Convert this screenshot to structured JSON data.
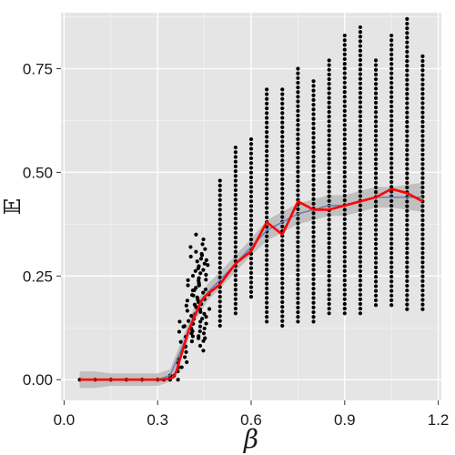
{
  "chart_data": {
    "type": "scatter",
    "xlabel": "β",
    "ylabel": "𝔼",
    "xlim": [
      -0.01,
      1.21
    ],
    "ylim": [
      -0.05,
      0.885
    ],
    "x_ticks": [
      0.0,
      0.3,
      0.6,
      0.9,
      1.2
    ],
    "x_tick_labels": [
      "0.0",
      "0.3",
      "0.6",
      "0.9",
      "1.2"
    ],
    "y_ticks": [
      0.0,
      0.25,
      0.5,
      0.75
    ],
    "y_tick_labels": [
      "0.00",
      "0.25",
      "0.50",
      "0.75"
    ],
    "grid": true,
    "colors": {
      "panel": "#e5e5e5",
      "grid_major": "#ffffff",
      "grid_minor": "#f2f2f2",
      "points": "#000000",
      "mean_line": "#ff0000",
      "smooth_line": "#6a7fb5",
      "smooth_band": "#b3b3b3"
    },
    "scatter_columns": [
      {
        "x": 0.05,
        "ymin": 0.0,
        "ymax": 0.0
      },
      {
        "x": 0.1,
        "ymin": 0.0,
        "ymax": 0.0
      },
      {
        "x": 0.15,
        "ymin": 0.0,
        "ymax": 0.0
      },
      {
        "x": 0.2,
        "ymin": 0.0,
        "ymax": 0.0
      },
      {
        "x": 0.25,
        "ymin": 0.0,
        "ymax": 0.0
      },
      {
        "x": 0.3,
        "ymin": 0.0,
        "ymax": 0.0
      },
      {
        "x": 0.32,
        "ymin": 0.0,
        "ymax": 0.0
      },
      {
        "x": 0.34,
        "ymin": 0.0,
        "ymax": 0.01
      },
      {
        "x": 0.36,
        "ymin": 0.0,
        "ymax": 0.05
      },
      {
        "x": 0.38,
        "ymin": 0.03,
        "ymax": 0.14
      },
      {
        "x": 0.4,
        "ymin": 0.08,
        "ymax": 0.24
      },
      {
        "x": 0.42,
        "ymin": 0.1,
        "ymax": 0.32
      },
      {
        "x": 0.44,
        "ymin": 0.07,
        "ymax": 0.35
      },
      {
        "x": 0.45,
        "ymin": 0.1,
        "ymax": 0.3
      },
      {
        "x": 0.5,
        "ymin": 0.13,
        "ymax": 0.48
      },
      {
        "x": 0.55,
        "ymin": 0.16,
        "ymax": 0.56
      },
      {
        "x": 0.6,
        "ymin": 0.2,
        "ymax": 0.58
      },
      {
        "x": 0.65,
        "ymin": 0.14,
        "ymax": 0.7
      },
      {
        "x": 0.7,
        "ymin": 0.13,
        "ymax": 0.7
      },
      {
        "x": 0.75,
        "ymin": 0.14,
        "ymax": 0.75
      },
      {
        "x": 0.8,
        "ymin": 0.14,
        "ymax": 0.72
      },
      {
        "x": 0.85,
        "ymin": 0.16,
        "ymax": 0.77
      },
      {
        "x": 0.9,
        "ymin": 0.16,
        "ymax": 0.83
      },
      {
        "x": 0.95,
        "ymin": 0.16,
        "ymax": 0.85
      },
      {
        "x": 1.0,
        "ymin": 0.18,
        "ymax": 0.77
      },
      {
        "x": 1.05,
        "ymin": 0.18,
        "ymax": 0.83
      },
      {
        "x": 1.1,
        "ymin": 0.17,
        "ymax": 0.87
      },
      {
        "x": 1.15,
        "ymin": 0.17,
        "ymax": 0.78
      }
    ],
    "series": [
      {
        "kind": "mean",
        "x": [
          0.05,
          0.1,
          0.15,
          0.2,
          0.25,
          0.3,
          0.32,
          0.35,
          0.36,
          0.4,
          0.44,
          0.45,
          0.5,
          0.55,
          0.6,
          0.65,
          0.7,
          0.75,
          0.8,
          0.85,
          0.9,
          0.95,
          1.0,
          1.05,
          1.1,
          1.15
        ],
        "y": [
          0.0,
          0.0,
          0.0,
          0.0,
          0.0,
          0.0,
          0.0,
          0.005,
          0.02,
          0.12,
          0.19,
          0.2,
          0.23,
          0.28,
          0.31,
          0.38,
          0.35,
          0.43,
          0.41,
          0.41,
          0.42,
          0.43,
          0.44,
          0.46,
          0.45,
          0.43
        ]
      },
      {
        "kind": "smooth",
        "x": [
          0.05,
          0.1,
          0.15,
          0.2,
          0.25,
          0.3,
          0.34,
          0.38,
          0.42,
          0.46,
          0.5,
          0.55,
          0.6,
          0.65,
          0.7,
          0.75,
          0.8,
          0.85,
          0.9,
          0.95,
          1.0,
          1.05,
          1.1,
          1.15
        ],
        "y": [
          0.0,
          0.0,
          0.0,
          0.0,
          0.0,
          0.0,
          0.01,
          0.08,
          0.16,
          0.21,
          0.24,
          0.28,
          0.32,
          0.36,
          0.38,
          0.4,
          0.41,
          0.42,
          0.42,
          0.43,
          0.44,
          0.44,
          0.44,
          0.44
        ],
        "band": [
          0.02,
          0.02,
          0.015,
          0.015,
          0.015,
          0.015,
          0.015,
          0.02,
          0.02,
          0.02,
          0.02,
          0.02,
          0.02,
          0.025,
          0.025,
          0.025,
          0.025,
          0.025,
          0.025,
          0.025,
          0.025,
          0.025,
          0.03,
          0.035
        ]
      }
    ]
  }
}
